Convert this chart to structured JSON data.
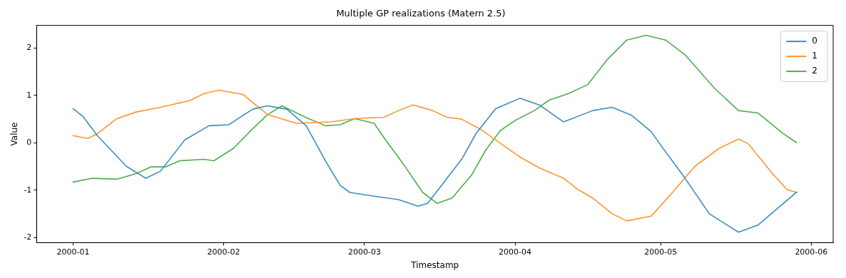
{
  "chart_data": {
    "type": "line",
    "title": "Multiple GP realizations (Matern 2.5)",
    "xlabel": "Timestamp",
    "ylabel": "Value",
    "xlim": [
      "1999-12-24T12:00",
      "2000-06-05T12:00"
    ],
    "xticks": [
      "2000-01",
      "2000-02",
      "2000-03",
      "2000-04",
      "2000-05",
      "2000-06"
    ],
    "ylim": [
      -2.11,
      2.48
    ],
    "yticks": [
      -2,
      -1,
      0,
      1,
      2
    ],
    "legend": "top right",
    "series": [
      {
        "name": "0",
        "color": "#3d8bc1",
        "x": [
          "2000-01-01",
          "2000-01-03",
          "2000-01-06",
          "2000-01-12",
          "2000-01-16",
          "2000-01-19",
          "2000-01-24",
          "2000-01-29",
          "2000-02-02",
          "2000-02-07",
          "2000-02-10",
          "2000-02-14",
          "2000-02-18",
          "2000-02-22",
          "2000-02-25",
          "2000-02-27",
          "2000-03-03",
          "2000-03-08",
          "2000-03-12",
          "2000-03-14",
          "2000-03-18",
          "2000-03-21",
          "2000-03-24",
          "2000-03-28",
          "2000-04-02",
          "2000-04-06",
          "2000-04-11",
          "2000-04-17",
          "2000-04-21",
          "2000-04-25",
          "2000-04-29",
          "2000-05-01",
          "2000-05-06",
          "2000-05-11",
          "2000-05-17",
          "2000-05-21",
          "2000-05-29"
        ],
        "values": [
          0.72,
          0.56,
          0.15,
          -0.5,
          -0.75,
          -0.6,
          0.06,
          0.36,
          0.38,
          0.71,
          0.78,
          0.71,
          0.36,
          -0.39,
          -0.9,
          -1.05,
          -1.13,
          -1.2,
          -1.34,
          -1.28,
          -0.75,
          -0.35,
          0.2,
          0.72,
          0.94,
          0.8,
          0.44,
          0.68,
          0.75,
          0.58,
          0.24,
          -0.05,
          -0.75,
          -1.5,
          -1.89,
          -1.74,
          -1.04
        ]
      },
      {
        "name": "1",
        "color": "#ff962f",
        "x": [
          "2000-01-01",
          "2000-01-04",
          "2000-01-06",
          "2000-01-10",
          "2000-01-14",
          "2000-01-19",
          "2000-01-25",
          "2000-01-28",
          "2000-01-31",
          "2000-02-05",
          "2000-02-10",
          "2000-02-16",
          "2000-02-23",
          "2000-02-28",
          "2000-03-05",
          "2000-03-08",
          "2000-03-11",
          "2000-03-15",
          "2000-03-18",
          "2000-03-21",
          "2000-03-25",
          "2000-03-28",
          "2000-04-02",
          "2000-04-06",
          "2000-04-11",
          "2000-04-14",
          "2000-04-17",
          "2000-04-21",
          "2000-04-24",
          "2000-04-29",
          "2000-04-30",
          "2000-05-03",
          "2000-05-08",
          "2000-05-13",
          "2000-05-17",
          "2000-05-19",
          "2000-05-24",
          "2000-05-27",
          "2000-05-29"
        ],
        "values": [
          0.15,
          0.09,
          0.19,
          0.51,
          0.65,
          0.75,
          0.89,
          1.04,
          1.11,
          1.02,
          0.6,
          0.41,
          0.44,
          0.51,
          0.54,
          0.68,
          0.8,
          0.68,
          0.54,
          0.5,
          0.28,
          0.06,
          -0.3,
          -0.53,
          -0.75,
          -0.99,
          -1.17,
          -1.5,
          -1.65,
          -1.55,
          -1.44,
          -1.1,
          -0.5,
          -0.12,
          0.08,
          -0.02,
          -0.65,
          -0.99,
          -1.05
        ]
      },
      {
        "name": "2",
        "color": "#4caf4c",
        "x": [
          "2000-01-01",
          "2000-01-05",
          "2000-01-10",
          "2000-01-14",
          "2000-01-17",
          "2000-01-20",
          "2000-01-23",
          "2000-01-28",
          "2000-01-30",
          "2000-02-03",
          "2000-02-07",
          "2000-02-10",
          "2000-02-13",
          "2000-02-18",
          "2000-02-22",
          "2000-02-25",
          "2000-02-28",
          "2000-03-03",
          "2000-03-05",
          "2000-03-09",
          "2000-03-13",
          "2000-03-16",
          "2000-03-19",
          "2000-03-23",
          "2000-03-26",
          "2000-03-29",
          "2000-04-01",
          "2000-04-05",
          "2000-04-08",
          "2000-04-12",
          "2000-04-16",
          "2000-04-20",
          "2000-04-24",
          "2000-04-28",
          "2000-05-02",
          "2000-05-06",
          "2000-05-12",
          "2000-05-17",
          "2000-05-21",
          "2000-05-26",
          "2000-05-29"
        ],
        "values": [
          -0.83,
          -0.75,
          -0.77,
          -0.65,
          -0.51,
          -0.51,
          -0.38,
          -0.35,
          -0.38,
          -0.12,
          0.3,
          0.59,
          0.78,
          0.53,
          0.36,
          0.38,
          0.51,
          0.41,
          0.11,
          -0.45,
          -1.05,
          -1.28,
          -1.17,
          -0.69,
          -0.15,
          0.26,
          0.47,
          0.68,
          0.9,
          1.04,
          1.23,
          1.76,
          2.17,
          2.27,
          2.17,
          1.86,
          1.16,
          0.68,
          0.63,
          0.21,
          0.0
        ]
      }
    ]
  }
}
